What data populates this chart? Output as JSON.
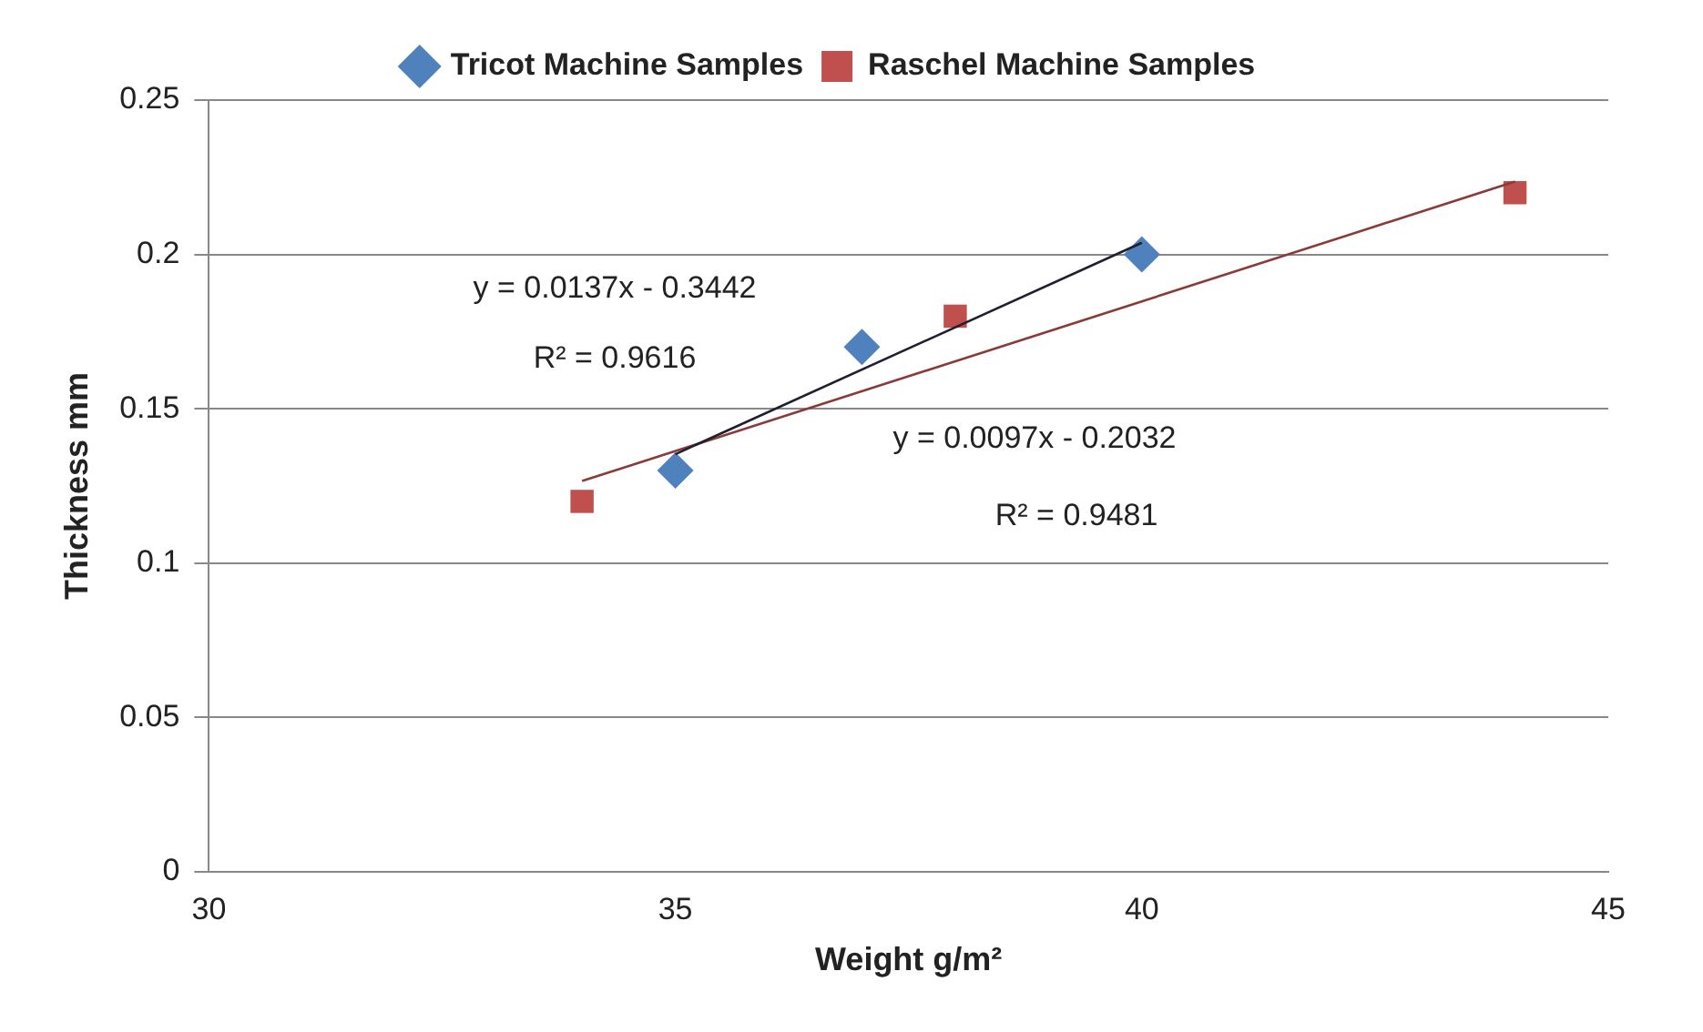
{
  "chart_data": {
    "type": "scatter",
    "xlabel": "Weight g/m²",
    "ylabel": "Thickness mm",
    "xlim": [
      30,
      45
    ],
    "xticks": [
      30,
      35,
      40,
      45
    ],
    "ylim": [
      0,
      0.25
    ],
    "yticks": [
      0,
      0.05,
      0.1,
      0.15,
      0.2,
      0.25
    ],
    "grid": "y",
    "legend": "top",
    "series": [
      {
        "name": "Tricot Machine Samples",
        "color": "#4f81bd",
        "marker": "diamond",
        "x": [
          35,
          37,
          40
        ],
        "values": [
          0.13,
          0.17,
          0.2
        ]
      },
      {
        "name": "Raschel Machine Samples",
        "color": "#c0504d",
        "marker": "square",
        "x": [
          34,
          38,
          44
        ],
        "values": [
          0.12,
          0.18,
          0.22
        ]
      },
      {
        "type": "line",
        "color": "#1f1f2f",
        "marker": "none",
        "line_style": "solid",
        "x": [
          35,
          40
        ],
        "values": [
          0.1353,
          0.2038
        ]
      },
      {
        "type": "line",
        "color": "#8b3a3a",
        "marker": "none",
        "line_style": "solid",
        "x": [
          34,
          44
        ],
        "values": [
          0.1266,
          0.2236
        ]
      }
    ],
    "annotations": [
      "y = 0.0137x - 0.3442",
      "R² = 0.9616",
      "y = 0.0097x - 0.2032",
      "R² = 0.9481"
    ]
  }
}
